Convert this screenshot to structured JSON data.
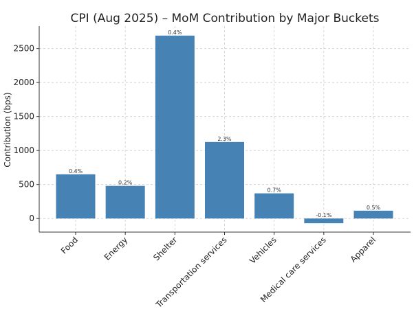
{
  "chart_data": {
    "type": "bar",
    "title": "CPI (Aug 2025) – MoM Contribution by Major Buckets",
    "xlabel": "",
    "ylabel": "Contribution (bps)",
    "ylim": [
      -200,
      2830
    ],
    "yticks": [
      0,
      500,
      1000,
      1500,
      2000,
      2500
    ],
    "grid": true,
    "bar_color": "#4682b4",
    "categories": [
      "Food",
      "Energy",
      "Shelter",
      "Transportation services",
      "Vehicles",
      "Medical care services",
      "Apparel"
    ],
    "values": [
      650,
      480,
      2690,
      1125,
      370,
      -70,
      115
    ],
    "data_labels": [
      "0.4%",
      "0.2%",
      "0.4%",
      "2.3%",
      "0.7%",
      "-0.1%",
      "0.5%"
    ]
  }
}
